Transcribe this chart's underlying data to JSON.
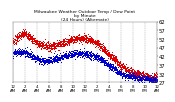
{
  "title": "Milwaukee Weather Outdoor Temp / Dew Point\nby Minute\n(24 Hours) (Alternate)",
  "bg_color": "#ffffff",
  "grid_color": "#888888",
  "temp_color": "#dd0000",
  "dew_color": "#0000cc",
  "ylim": [
    27,
    62
  ],
  "yticks": [
    27,
    32,
    37,
    42,
    47,
    52,
    57,
    62
  ],
  "ylabel_fontsize": 3.8,
  "title_fontsize": 3.2,
  "num_points": 1440,
  "temp_ctrl_x": [
    0,
    1,
    2,
    3,
    4,
    5,
    6,
    7,
    8,
    9,
    10,
    11,
    12,
    13,
    14,
    15,
    16,
    17,
    18,
    19,
    20,
    21,
    22,
    23,
    24
  ],
  "temp_ctrl_y": [
    50,
    53,
    55,
    52,
    49,
    48,
    47,
    48,
    49,
    50,
    51,
    52,
    52,
    51,
    49,
    46,
    42,
    40,
    36,
    34,
    32,
    31,
    30,
    29,
    29
  ],
  "dew_ctrl_x": [
    0,
    1,
    2,
    3,
    4,
    5,
    6,
    7,
    8,
    9,
    10,
    11,
    12,
    13,
    14,
    15,
    16,
    17,
    18,
    19,
    20,
    21,
    22,
    23,
    24
  ],
  "dew_ctrl_y": [
    43,
    44,
    44,
    42,
    40,
    39,
    39,
    40,
    41,
    42,
    43,
    43,
    43,
    42,
    41,
    39,
    36,
    34,
    31,
    30,
    30,
    29,
    29,
    28,
    28
  ],
  "grid_x_positions": [
    0,
    2,
    4,
    6,
    8,
    10,
    12,
    14,
    16,
    18,
    20,
    22,
    24
  ],
  "xtick_labels": [
    "12\nAM",
    "2\nAM",
    "4\nAM",
    "6\nAM",
    "8\nAM",
    "10\nAM",
    "12\nPM",
    "2\nPM",
    "4\nPM",
    "6\nPM",
    "8\nPM",
    "10\nPM",
    "12\nAM"
  ]
}
